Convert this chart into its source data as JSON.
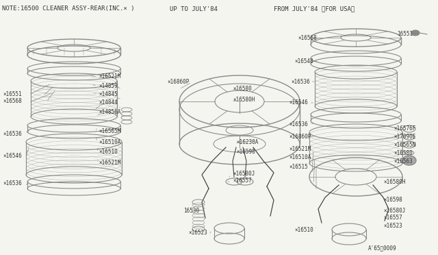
{
  "bg_color": "#f5f5f0",
  "line_color": "#888888",
  "dark_color": "#444444",
  "text_color": "#333333",
  "fig_width": 6.4,
  "fig_height": 3.72,
  "dpi": 100,
  "title_note": "NOTE:16500 CLEANER ASSY-REAR(INC.× )",
  "title_upto": "UP TO JULY'84",
  "title_from": "FROM JULY'84 〈FOR USA〉",
  "diagram_ref": "A'65：0009"
}
